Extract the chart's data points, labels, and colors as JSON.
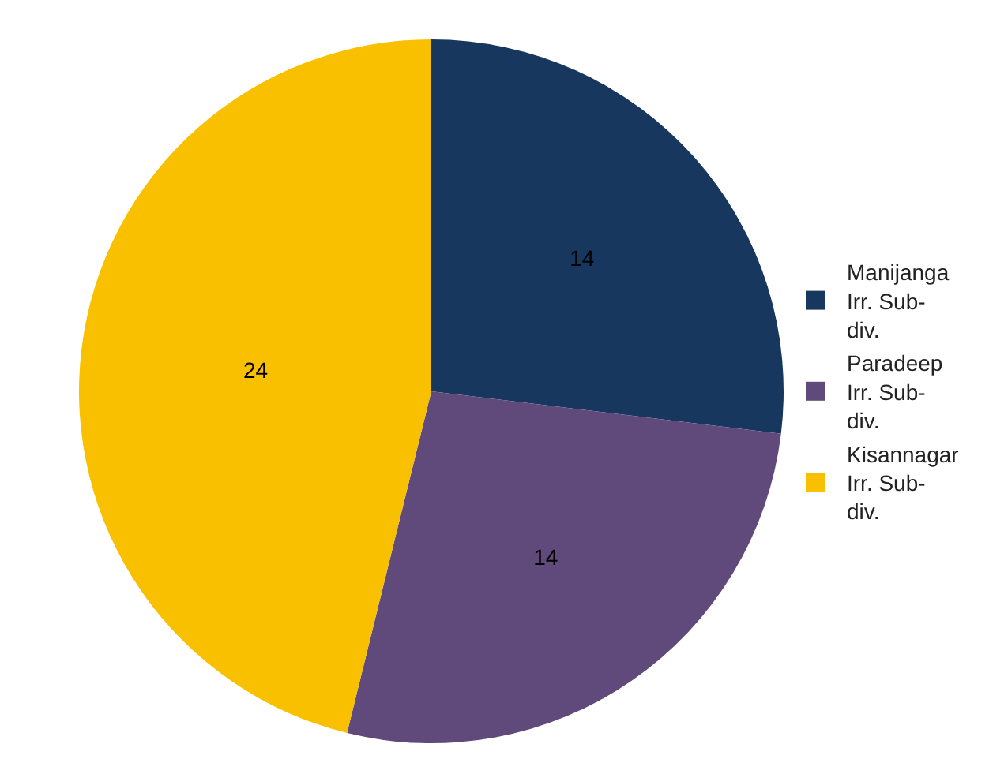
{
  "chart_data": {
    "type": "pie",
    "categories": [
      "Manijanga Irr. Sub-div.",
      "Paradeep Irr. Sub-div.",
      "Kisannagar Irr. Sub-div."
    ],
    "values": [
      14,
      14,
      24
    ],
    "colors": [
      "#17375e",
      "#604a7b",
      "#f9c000"
    ],
    "data_labels": true,
    "legend": "right"
  }
}
